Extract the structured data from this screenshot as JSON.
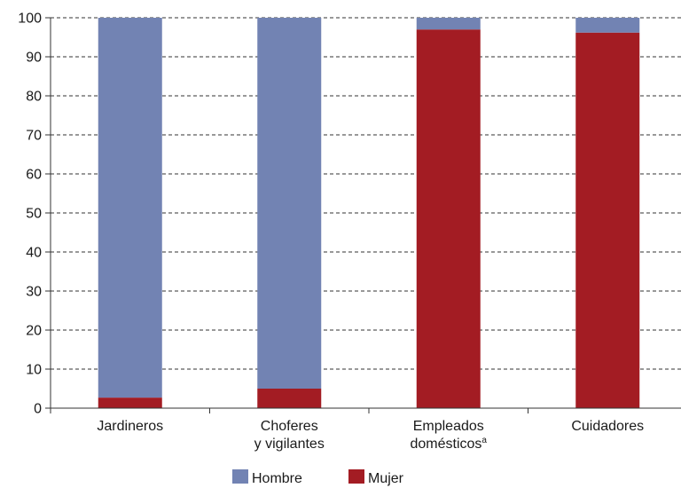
{
  "chart_data": {
    "type": "bar",
    "stacked": true,
    "categories": [
      {
        "lines": [
          "Jardineros"
        ],
        "sup": ""
      },
      {
        "lines": [
          "Choferes",
          "y vigilantes"
        ],
        "sup": ""
      },
      {
        "lines": [
          "Empleados",
          "domésticos"
        ],
        "sup": "a"
      },
      {
        "lines": [
          "Cuidadores"
        ],
        "sup": ""
      }
    ],
    "series": [
      {
        "name": "Mujer",
        "color": "#a31c23",
        "values": [
          2.7,
          5,
          97,
          96.2
        ]
      },
      {
        "name": "Hombre",
        "color": "#7283b3",
        "values": [
          97.3,
          95,
          3,
          3.8
        ]
      }
    ],
    "ylim": [
      0,
      100
    ],
    "yticks": [
      0,
      10,
      20,
      30,
      40,
      50,
      60,
      70,
      80,
      90,
      100
    ],
    "grid": true,
    "legend_position": "bottom",
    "legend_order": [
      "Hombre",
      "Mujer"
    ]
  }
}
